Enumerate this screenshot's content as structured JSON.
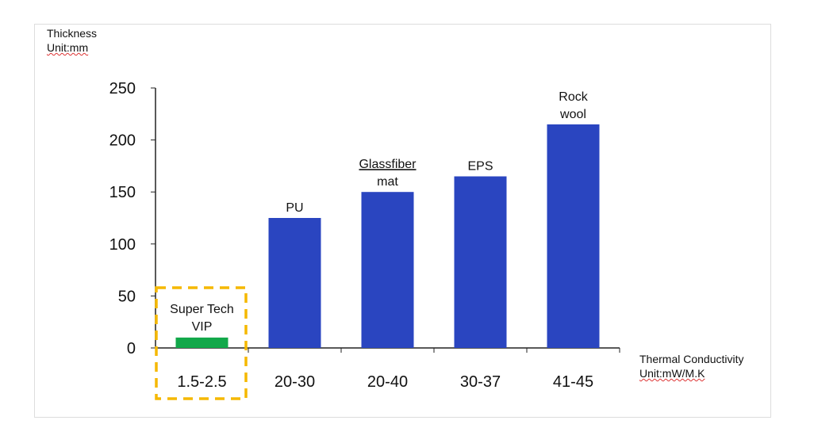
{
  "chart_data": {
    "type": "bar",
    "ylabel": "Thickness",
    "ylabel_unit": "Unit:mm",
    "xlabel": "Thermal Conductivity",
    "xlabel_unit": "Unit:mW/M.K",
    "ylim": [
      0,
      250
    ],
    "yticks": [
      0,
      50,
      100,
      150,
      200,
      250
    ],
    "categories": [
      "1.5-2.5",
      "20-30",
      "20-40",
      "30-37",
      "41-45"
    ],
    "bar_labels": [
      "Super Tech VIP",
      "PU",
      "Glassfiber mat",
      "EPS",
      "Rock wool"
    ],
    "bar_label_lines": [
      [
        "Super Tech",
        "VIP"
      ],
      [
        "PU"
      ],
      [
        "Glassfiber",
        "mat"
      ],
      [
        "EPS"
      ],
      [
        "Rock",
        "wool"
      ]
    ],
    "values": [
      10,
      125,
      150,
      165,
      215
    ],
    "colors": [
      "#12a84a",
      "#2a45c0",
      "#2a45c0",
      "#2a45c0",
      "#2a45c0"
    ],
    "highlight": {
      "category": "1.5-2.5",
      "color": "#f5b800"
    }
  }
}
